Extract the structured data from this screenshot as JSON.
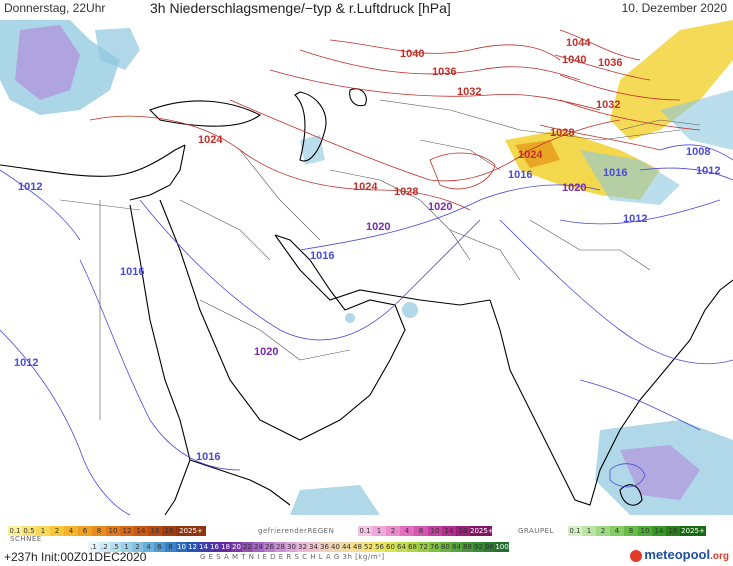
{
  "header": {
    "left": "Donnerstag, 22Uhr",
    "center": "3h Niederschlagsmenge/−typ & r.Luftdruck [hPa]",
    "right": "10. Dezember 2020"
  },
  "colors": {
    "high_isobar": "#c0302a",
    "low_isobar": "#4a4ad8",
    "coast": "#000000",
    "border": "#555555",
    "snow": "#8ec8e0",
    "rain_yellow": "#f2d43a",
    "rain_orange": "#e8a020",
    "precip_purple": "#b27ad8"
  },
  "isobar_labels": [
    {
      "text": "1040",
      "color": "red"
    },
    {
      "text": "1036",
      "color": "red"
    },
    {
      "text": "1032",
      "color": "red"
    },
    {
      "text": "1024",
      "color": "red"
    },
    {
      "text": "1024",
      "color": "red"
    },
    {
      "text": "1028",
      "color": "red"
    },
    {
      "text": "1044",
      "color": "red"
    },
    {
      "text": "1040",
      "color": "red"
    },
    {
      "text": "1036",
      "color": "red"
    },
    {
      "text": "1032",
      "color": "red"
    },
    {
      "text": "1028",
      "color": "red"
    },
    {
      "text": "1024",
      "color": "red"
    },
    {
      "text": "1016",
      "color": "blue"
    },
    {
      "text": "1020",
      "color": "purple"
    },
    {
      "text": "1016",
      "color": "blue"
    },
    {
      "text": "1008",
      "color": "blue"
    },
    {
      "text": "1012",
      "color": "blue"
    },
    {
      "text": "1012",
      "color": "blue"
    },
    {
      "text": "1012",
      "color": "blue"
    },
    {
      "text": "1016",
      "color": "blue"
    },
    {
      "text": "1020",
      "color": "purple"
    },
    {
      "text": "1016",
      "color": "blue"
    },
    {
      "text": "1020",
      "color": "purple"
    },
    {
      "text": "1012",
      "color": "blue"
    },
    {
      "text": "1016",
      "color": "blue"
    },
    {
      "text": "1020",
      "color": "purple"
    }
  ],
  "legend": {
    "rain_scale": [
      "0.1",
      "0.5",
      "1",
      "2",
      "4",
      "6",
      "8",
      "10",
      "12",
      "14",
      "16",
      "18",
      "2025+"
    ],
    "freezing_label": "gefrierenderREGEN",
    "freezing_scale": [
      "0.1",
      "1",
      "2",
      "4",
      "8",
      "10",
      "14",
      "16",
      "2025+"
    ],
    "hail_label": "GRAUPEL",
    "hail_scale": [
      "0.1",
      "1",
      "2",
      "4",
      "8",
      "10",
      "14",
      "16",
      "2025+"
    ],
    "snow_label": "SCHNEE",
    "total_scale": [
      ".1",
      ".2",
      ".5",
      "1",
      "2",
      "4",
      "6",
      "8",
      "10",
      "12",
      "14",
      "16",
      "18",
      "20",
      "22",
      "24",
      "26",
      "28",
      "30",
      "32",
      "34",
      "36",
      "40",
      "44",
      "48",
      "52",
      "56",
      "60",
      "64",
      "68",
      "72",
      "76",
      "80",
      "84",
      "88",
      "92",
      "96",
      "100"
    ],
    "total_label": "G E S A M T N I E D E R S C H L A G   3h   [kg/m²]"
  },
  "footer": {
    "run": "+237h  Init:00Z01DEC2020",
    "brand": "meteopool",
    "brand_tld": ".org"
  }
}
